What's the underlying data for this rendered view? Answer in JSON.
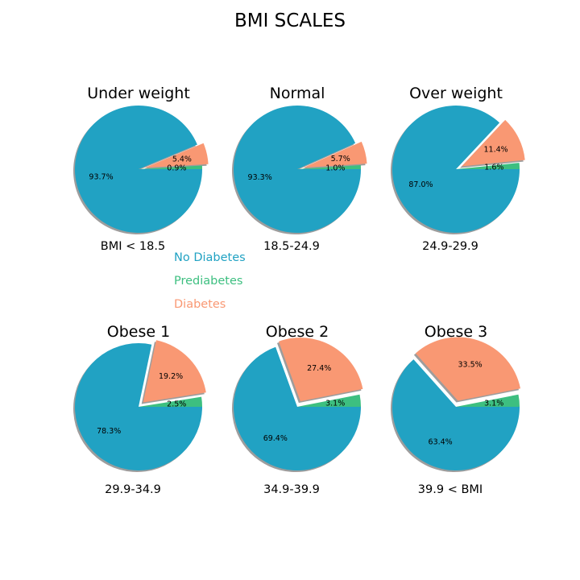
{
  "suptitle": "BMI SCALES",
  "colors": {
    "No Diabetes": "#21a2c3",
    "Prediabetes": "#3dbf80",
    "Diabetes": "#f99873",
    "shadow": "#8c8c8c"
  },
  "legend": {
    "placement": "center-left",
    "entries": [
      "No Diabetes",
      "Prediabetes",
      "Diabetes"
    ]
  },
  "chart_data": [
    {
      "type": "pie",
      "title": "Under weight",
      "xlabel": "BMI < 18.5",
      "labels": [
        "No Diabetes",
        "Prediabetes",
        "Diabetes"
      ],
      "values": [
        93.7,
        0.9,
        5.4
      ],
      "value_labels": [
        "93.7%",
        "0.9%",
        "5.4%"
      ],
      "explode": [
        0,
        0,
        0.1
      ],
      "shadow": true
    },
    {
      "type": "pie",
      "title": "Normal",
      "xlabel": "18.5-24.9",
      "labels": [
        "No Diabetes",
        "Prediabetes",
        "Diabetes"
      ],
      "values": [
        93.3,
        1.0,
        5.7
      ],
      "value_labels": [
        "93.3%",
        "1.0%",
        "5.7%"
      ],
      "explode": [
        0,
        0,
        0.1
      ],
      "shadow": true
    },
    {
      "type": "pie",
      "title": "Over weight",
      "xlabel": "24.9-29.9",
      "labels": [
        "No Diabetes",
        "Prediabetes",
        "Diabetes"
      ],
      "values": [
        87.0,
        1.6,
        11.4
      ],
      "value_labels": [
        "87.0%",
        "1.6%",
        "11.4%"
      ],
      "explode": [
        0,
        0,
        0.1
      ],
      "shadow": true
    },
    {
      "type": "pie",
      "title": "Obese 1",
      "xlabel": "29.9-34.9",
      "labels": [
        "No Diabetes",
        "Prediabetes",
        "Diabetes"
      ],
      "values": [
        78.3,
        2.5,
        19.2
      ],
      "value_labels": [
        "78.3%",
        "2.5%",
        "19.2%"
      ],
      "explode": [
        0,
        0,
        0.1
      ],
      "shadow": true
    },
    {
      "type": "pie",
      "title": "Obese 2",
      "xlabel": "34.9-39.9",
      "labels": [
        "No Diabetes",
        "Prediabetes",
        "Diabetes"
      ],
      "values": [
        69.4,
        3.1,
        27.4
      ],
      "value_labels": [
        "69.4%",
        "3.1%",
        "27.4%"
      ],
      "explode": [
        0,
        0,
        0.1
      ],
      "shadow": true
    },
    {
      "type": "pie",
      "title": "Obese 3",
      "xlabel": "39.9 < BMI",
      "labels": [
        "No Diabetes",
        "Prediabetes",
        "Diabetes"
      ],
      "values": [
        63.4,
        3.1,
        33.5
      ],
      "value_labels": [
        "63.4%",
        "3.1%",
        "33.5%"
      ],
      "explode": [
        0,
        0,
        0.1
      ],
      "shadow": true
    }
  ]
}
